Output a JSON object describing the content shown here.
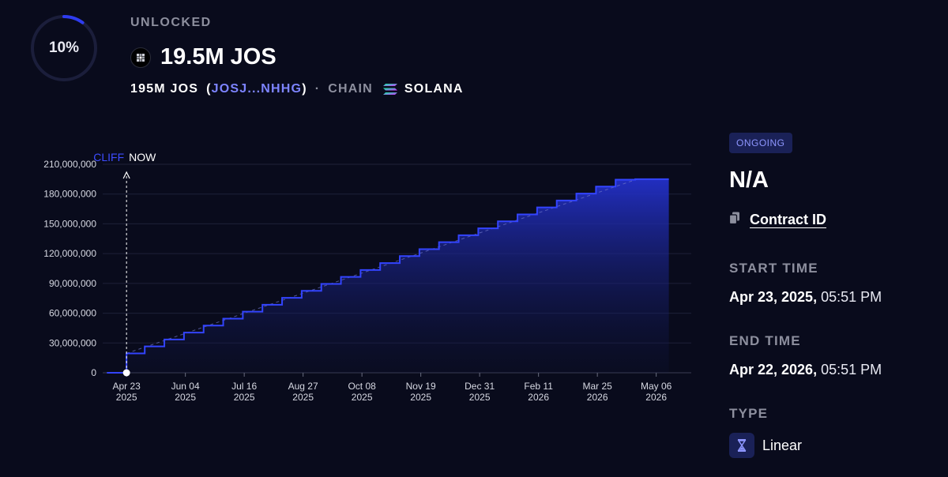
{
  "header": {
    "progress_label": "10%",
    "progress_fraction": 0.1,
    "unlocked_label": "UNLOCKED",
    "unlocked_amount": "19.5M JOS",
    "total_amount": "195M JOS",
    "paren_open": "(",
    "token_address": "JOSJ...NHHG",
    "paren_close": ")",
    "separator": "·",
    "chain_label": "CHAIN",
    "chain_name": "SOLANA"
  },
  "colors": {
    "background": "#090b1c",
    "accent": "#2e3cf0",
    "link": "#7d84ff",
    "muted": "#8d8f9e",
    "badge_bg": "#1a2157",
    "badge_text": "#8e96ff"
  },
  "chart_data": {
    "type": "area",
    "cliff_label": "CLIFF",
    "now_label": "NOW",
    "y_ticks": [
      0,
      30000000,
      60000000,
      90000000,
      120000000,
      150000000,
      180000000,
      210000000
    ],
    "y_tick_labels": [
      "0",
      "30,000,000",
      "60,000,000",
      "90,000,000",
      "120,000,000",
      "150,000,000",
      "180,000,000",
      "210,000,000"
    ],
    "ylim": [
      0,
      210000000
    ],
    "x_range": [
      "2025-04-06",
      "2026-05-31"
    ],
    "x_ticks": [
      {
        "date": "2025-04-23",
        "line1": "Apr 23",
        "line2": "2025"
      },
      {
        "date": "2025-06-04",
        "line1": "Jun 04",
        "line2": "2025"
      },
      {
        "date": "2025-07-16",
        "line1": "Jul 16",
        "line2": "2025"
      },
      {
        "date": "2025-08-27",
        "line1": "Aug 27",
        "line2": "2025"
      },
      {
        "date": "2025-10-08",
        "line1": "Oct 08",
        "line2": "2025"
      },
      {
        "date": "2025-11-19",
        "line1": "Nov 19",
        "line2": "2025"
      },
      {
        "date": "2025-12-31",
        "line1": "Dec 31",
        "line2": "2025"
      },
      {
        "date": "2026-02-11",
        "line1": "Feb 11",
        "line2": "2026"
      },
      {
        "date": "2026-03-25",
        "line1": "Mar 25",
        "line2": "2026"
      },
      {
        "date": "2026-05-06",
        "line1": "May 06",
        "line2": "2026"
      }
    ],
    "cliff_date": "2025-04-23",
    "now_date": "2025-04-23",
    "series": [
      {
        "x": [
          "2025-04-09",
          "2025-04-23",
          "2025-05-06",
          "2025-05-20",
          "2025-06-03",
          "2025-06-17",
          "2025-07-01",
          "2025-07-15",
          "2025-07-29",
          "2025-08-12",
          "2025-08-26",
          "2025-09-09",
          "2025-09-23",
          "2025-10-07",
          "2025-10-21",
          "2025-11-04",
          "2025-11-18",
          "2025-12-02",
          "2025-12-16",
          "2025-12-30",
          "2026-01-13",
          "2026-01-27",
          "2026-02-10",
          "2026-02-24",
          "2026-03-10",
          "2026-03-24",
          "2026-04-07",
          "2026-04-21",
          "2026-05-15"
        ],
        "y": [
          0,
          19500000,
          26500000,
          33500000,
          40500000,
          47500000,
          54500000,
          61500000,
          68500000,
          75500000,
          82500000,
          89500000,
          96500000,
          103500000,
          110500000,
          117500000,
          124500000,
          131500000,
          138500000,
          145500000,
          152500000,
          159500000,
          166500000,
          173500000,
          180500000,
          187500000,
          194500000,
          195000000,
          195000000
        ]
      }
    ]
  },
  "details": {
    "status_badge": "ONGOING",
    "name": "N/A",
    "contract_link": "Contract ID",
    "start_label": "START TIME",
    "start_date": "Apr 23, 2025,",
    "start_time": "05:51 PM",
    "end_label": "END TIME",
    "end_date": "Apr 22, 2026,",
    "end_time": "05:51 PM",
    "type_label": "TYPE",
    "type_value": "Linear"
  }
}
